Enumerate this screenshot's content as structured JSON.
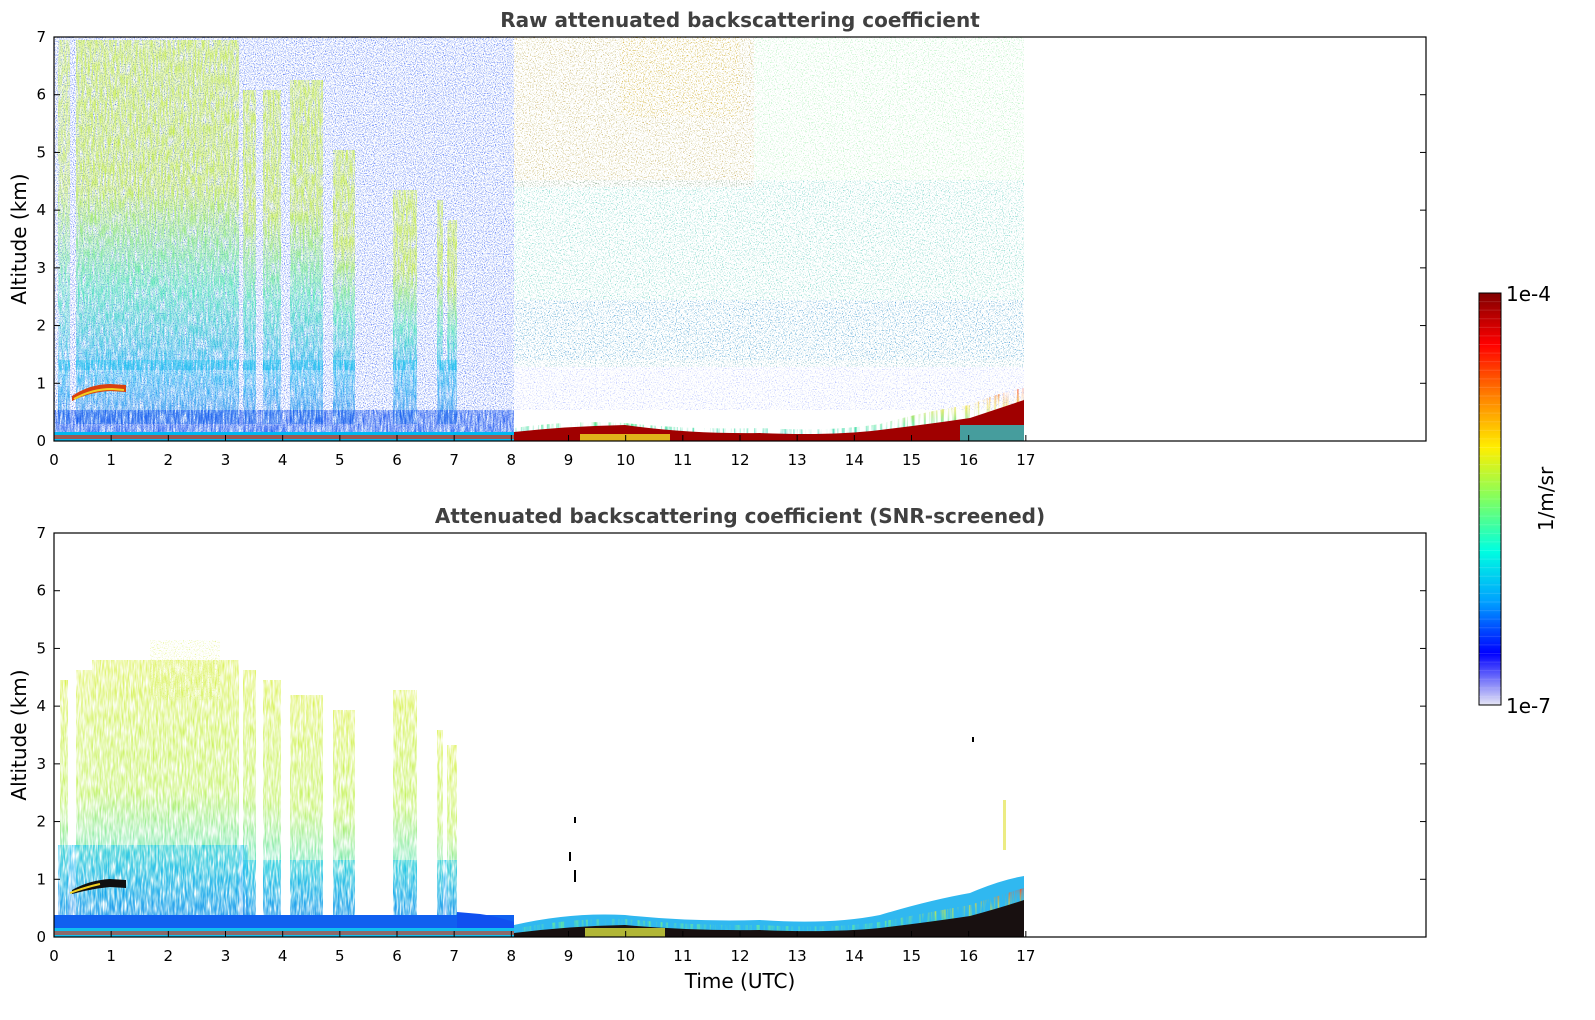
{
  "chart_data": [
    {
      "type": "heatmap",
      "title": "Raw attenuated backscattering coefficient",
      "xlabel": "",
      "ylabel": "Altitude (km)",
      "xlim": [
        0,
        24
      ],
      "ylim": [
        0,
        7
      ],
      "x_ticks": [
        "0",
        "1",
        "2",
        "3",
        "4",
        "5",
        "6",
        "7",
        "8",
        "9",
        "10",
        "11",
        "12",
        "13",
        "14",
        "15",
        "16",
        "17"
      ],
      "y_ticks": [
        "0",
        "1",
        "2",
        "3",
        "4",
        "5",
        "6",
        "7"
      ],
      "data_extent_x": [
        0,
        17
      ],
      "grid": false,
      "features": [
        {
          "name": "boundary-layer",
          "time": [
            0,
            8
          ],
          "altitude": [
            0,
            0.3
          ],
          "level": "high"
        },
        {
          "name": "aerosol-layer",
          "time": [
            0.3,
            1.2
          ],
          "altitude": [
            0.75,
            0.95
          ],
          "level": "very-high"
        },
        {
          "name": "residual-layer",
          "time": [
            0.3,
            7.3
          ],
          "altitude": [
            0,
            4.5
          ],
          "level": "medium"
        },
        {
          "name": "surface-layer",
          "time": [
            8,
            17
          ],
          "altitude": [
            0,
            0.7
          ],
          "level": "saturated"
        }
      ]
    },
    {
      "type": "heatmap",
      "title": "Attenuated backscattering coefficient (SNR-screened)",
      "xlabel": "Time (UTC)",
      "ylabel": "Altitude (km)",
      "xlim": [
        0,
        24
      ],
      "ylim": [
        0,
        7
      ],
      "x_ticks": [
        "0",
        "1",
        "2",
        "3",
        "4",
        "5",
        "6",
        "7",
        "8",
        "9",
        "10",
        "11",
        "12",
        "13",
        "14",
        "15",
        "16",
        "17"
      ],
      "y_ticks": [
        "0",
        "1",
        "2",
        "3",
        "4",
        "5",
        "6",
        "7"
      ],
      "data_extent_x": [
        0,
        17
      ],
      "grid": false
    }
  ],
  "colorbar": {
    "label": "1/m/sr",
    "max_label": "1e-4",
    "min_label": "1e-7",
    "colormap": "jet",
    "stops": [
      "#e6e6f5",
      "#0000ff",
      "#00a0ff",
      "#00ffe0",
      "#80ff60",
      "#ffee00",
      "#ff8000",
      "#ff0000",
      "#800000"
    ]
  }
}
